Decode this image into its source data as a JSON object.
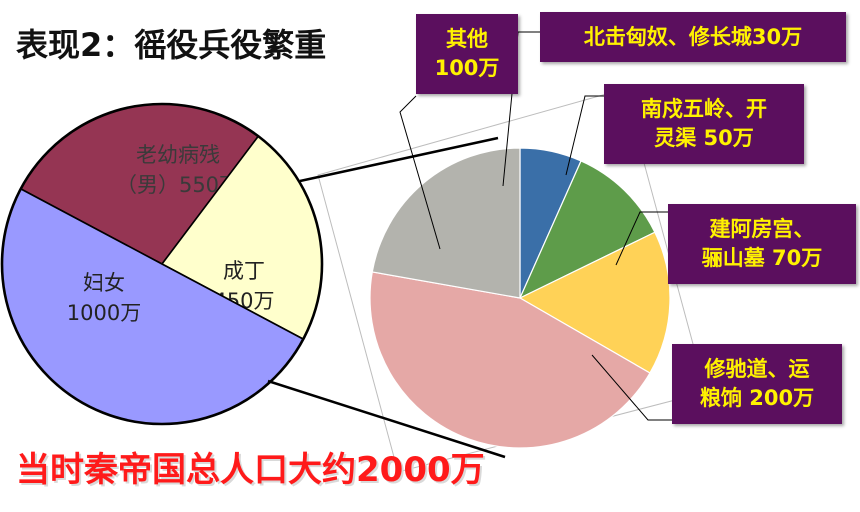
{
  "title": "表现2：徭役兵役繁重",
  "footer": "当时秦帝国总人口大约2000万",
  "chart_data": [
    {
      "type": "pie",
      "slices": [
        {
          "label": "老幼病残\n（男）550万",
          "value": 550,
          "color": "#953553"
        },
        {
          "label": "成丁\n450万",
          "value": 450,
          "color": "#ffffcc"
        },
        {
          "label": "妇女\n1000万",
          "value": 1000,
          "color": "#9999ff"
        }
      ]
    },
    {
      "type": "pie",
      "slices": [
        {
          "label": "北击匈奴、修长城30万",
          "value": 30,
          "color": "#3a6fa8"
        },
        {
          "label": "南戍五岭、开\n灵渠 50万",
          "value": 50,
          "color": "#5e9c4a"
        },
        {
          "label": "建阿房宫、\n骊山墓 70万",
          "value": 70,
          "color": "#ffd257"
        },
        {
          "label": "修驰道、运\n粮饷  200万",
          "value": 200,
          "color": "#e5a8a6"
        },
        {
          "label": "其他\n100万",
          "value": 100,
          "color": "#b3b3ad"
        }
      ]
    }
  ]
}
